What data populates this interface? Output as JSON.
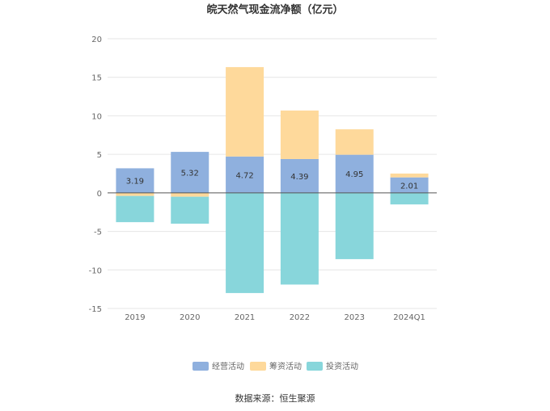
{
  "chart_data": {
    "type": "bar",
    "stacked": true,
    "title": "皖天然气现金流净额（亿元）",
    "categories": [
      "2019",
      "2020",
      "2021",
      "2022",
      "2023",
      "2024Q1"
    ],
    "ylim": [
      -15,
      20
    ],
    "yticks": [
      -15,
      -10,
      -5,
      0,
      5,
      10,
      15,
      20
    ],
    "grid": true,
    "legend_position": "bottom",
    "series": [
      {
        "name": "经营活动",
        "color": "#8fb0de",
        "values": [
          3.19,
          5.32,
          4.72,
          4.39,
          4.95,
          2.01
        ],
        "labels": [
          "3.19",
          "5.32",
          "4.72",
          "4.39",
          "4.95",
          "2.01"
        ]
      },
      {
        "name": "筹资活动",
        "color": "#fed99b",
        "values": [
          -0.4,
          -0.5,
          11.6,
          6.3,
          3.3,
          0.5
        ]
      },
      {
        "name": "投资活动",
        "color": "#88d6db",
        "values": [
          -3.4,
          -3.5,
          -13.0,
          -11.9,
          -8.6,
          -1.5
        ]
      }
    ],
    "source": "数据来源：恒生聚源"
  }
}
